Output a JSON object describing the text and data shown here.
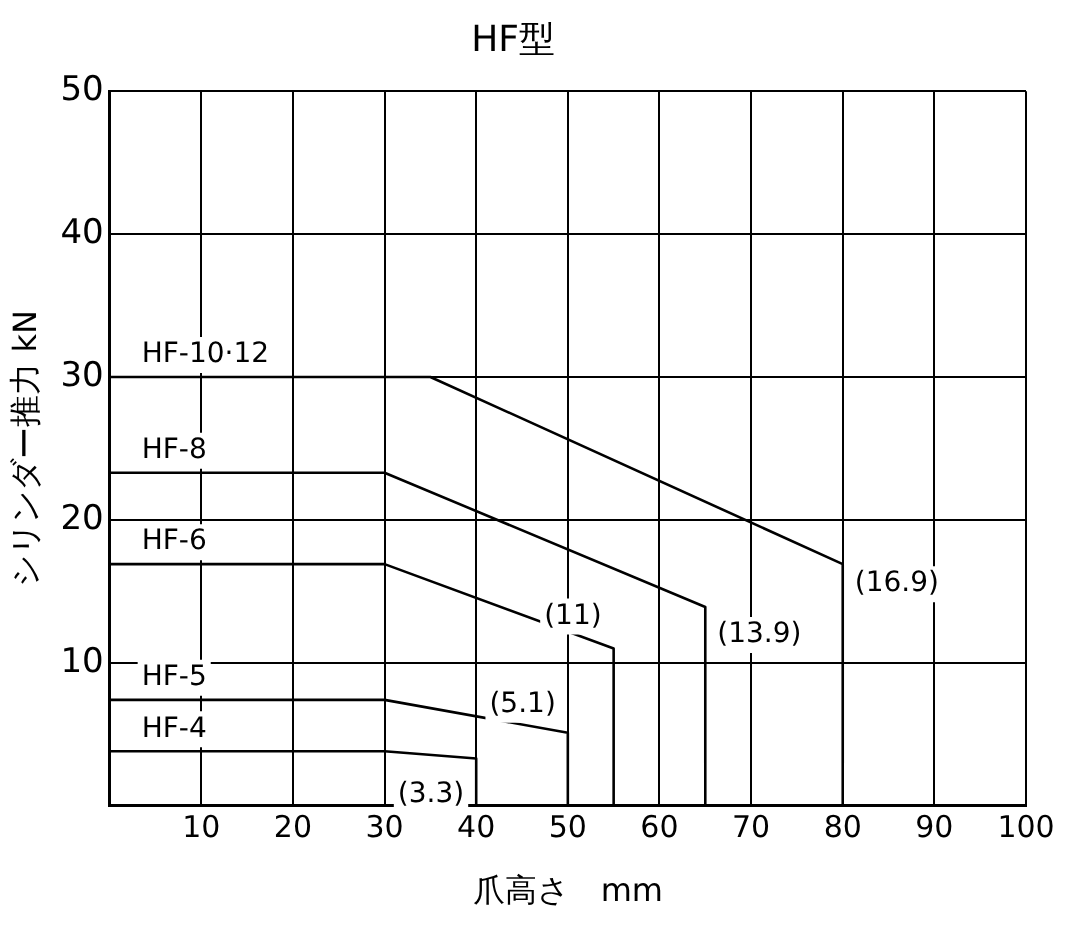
{
  "chart_data": {
    "type": "line",
    "title": "HF型",
    "xlabel": "爪高さ　mm",
    "ylabel": "シリンダー推力 kN",
    "series": [
      {
        "name": "HF-10·12",
        "color": "#000000",
        "x": [
          0,
          35,
          80,
          80
        ],
        "values": [
          30,
          30,
          16.9,
          0
        ]
      },
      {
        "name": "HF-8",
        "color": "#000000",
        "x": [
          0,
          30,
          65,
          65
        ],
        "values": [
          23.3,
          23.3,
          13.9,
          0
        ]
      },
      {
        "name": "HF-6",
        "color": "#000000",
        "x": [
          0,
          30,
          55,
          55
        ],
        "values": [
          16.9,
          16.9,
          11,
          0
        ]
      },
      {
        "name": "HF-5",
        "color": "#000000",
        "x": [
          0,
          30,
          50,
          50
        ],
        "values": [
          7.4,
          7.4,
          5.1,
          0
        ]
      },
      {
        "name": "HF-4",
        "color": "#000000",
        "x": [
          0,
          30,
          40,
          40
        ],
        "values": [
          3.8,
          3.8,
          3.3,
          0
        ]
      }
    ],
    "annotations": [
      {
        "text": "(16.9)",
        "x": 80,
        "y": 16.9
      },
      {
        "text": "(13.9)",
        "x": 65,
        "y": 13.9
      },
      {
        "text": "(11)",
        "x": 55,
        "y": 11
      },
      {
        "text": "(5.1)",
        "x": 50,
        "y": 5.1
      },
      {
        "text": "(3.3)",
        "x": 40,
        "y": 3.3
      }
    ],
    "xlim": [
      0,
      100
    ],
    "xticks": [
      {
        "value": 0,
        "label": null
      },
      10,
      20,
      30,
      40,
      50,
      60,
      70,
      80,
      90,
      100
    ],
    "ylim": [
      0,
      50
    ],
    "yticks": [
      {
        "value": 0,
        "label": null
      },
      10,
      20,
      30,
      40,
      50
    ],
    "grid": true,
    "legend": false,
    "marker": "none",
    "line_style": "solid"
  }
}
